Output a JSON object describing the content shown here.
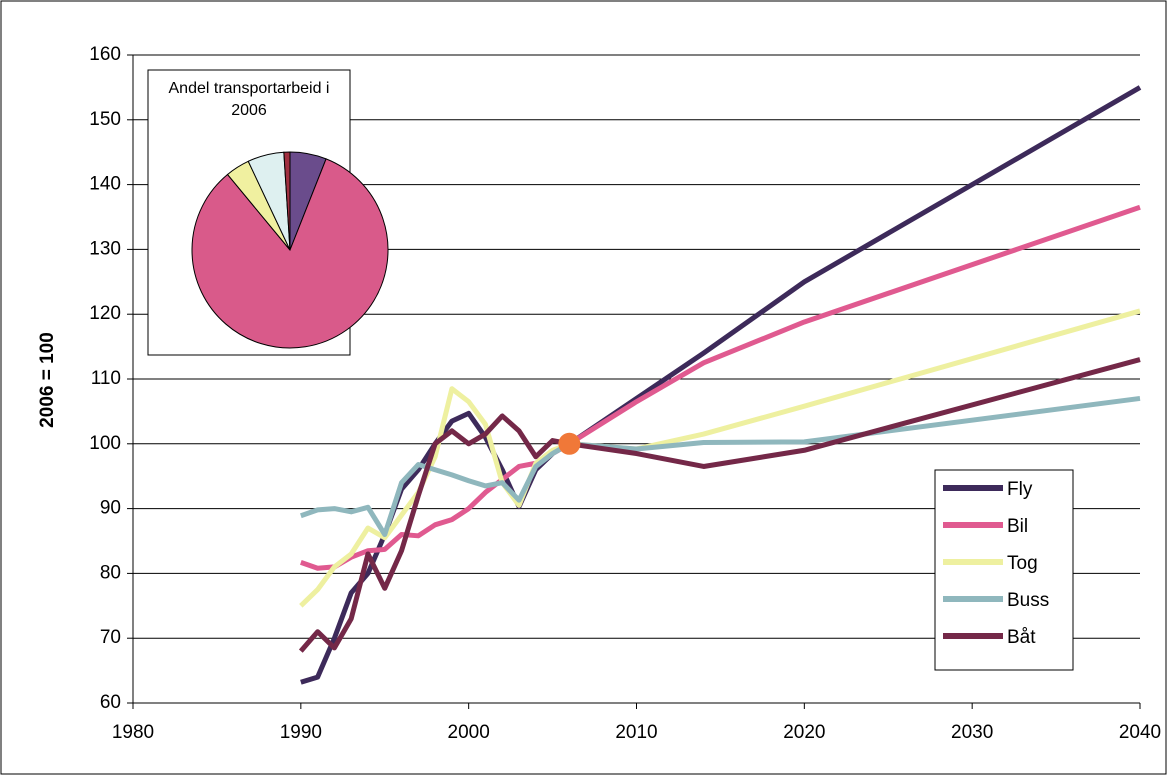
{
  "chart_data": [
    {
      "type": "line",
      "ylabel": "2006 = 100",
      "x": [
        1990,
        1991,
        1992,
        1993,
        1994,
        1995,
        1996,
        1997,
        1998,
        1999,
        2000,
        2001,
        2002,
        2003,
        2004,
        2005,
        2006,
        2010,
        2014,
        2020,
        2040
      ],
      "series": [
        {
          "name": "Fly",
          "color": "#3d2a5a",
          "values": [
            63.2,
            64,
            70,
            77,
            80,
            86,
            93,
            96,
            100,
            103.5,
            104.7,
            101,
            96,
            90.3,
            96,
            98.5,
            100,
            107,
            114,
            125,
            155
          ]
        },
        {
          "name": "Bil",
          "color": "#e05a90",
          "values": [
            81.7,
            80.8,
            81,
            82.5,
            83.5,
            83.7,
            86,
            85.8,
            87.5,
            88.3,
            90,
            92.5,
            94.5,
            96.5,
            97,
            98.5,
            100,
            106.5,
            112.5,
            118.8,
            136.5
          ]
        },
        {
          "name": "Tog",
          "color": "#eef0a0",
          "values": [
            75,
            77.5,
            81,
            83,
            87,
            85.5,
            89,
            92.5,
            98,
            108.5,
            106.5,
            103,
            94,
            90.5,
            97,
            99,
            100,
            99.2,
            101.5,
            105.8,
            120.5
          ]
        },
        {
          "name": "Buss",
          "color": "#8fb7bd",
          "values": [
            88.9,
            89.8,
            90,
            89.5,
            90.2,
            86,
            94,
            96.8,
            96,
            95.2,
            94.3,
            93.5,
            94,
            91.3,
            96.5,
            98.5,
            100,
            99.2,
            100.2,
            100.3,
            107
          ]
        },
        {
          "name": "Båt",
          "color": "#742848",
          "values": [
            68,
            71,
            68.5,
            73,
            83,
            77.7,
            83.5,
            92,
            100,
            102,
            100,
            101.5,
            104.3,
            102,
            98,
            100.5,
            100,
            98.5,
            96.5,
            99,
            113
          ]
        }
      ],
      "highlight": {
        "x": 2006,
        "y": 100,
        "color": "#f07838"
      },
      "xlim": [
        1980,
        2040
      ],
      "xticks": [
        1980,
        1990,
        2000,
        2010,
        2020,
        2030,
        2040
      ],
      "ylim": [
        60,
        160
      ],
      "yticks": [
        60,
        70,
        80,
        90,
        100,
        110,
        120,
        130,
        140,
        150,
        160
      ],
      "grid": true,
      "legend": "lower-right"
    },
    {
      "type": "pie",
      "title": "Andel transportarbeid i 2006",
      "values": [
        6,
        83,
        4,
        6,
        1
      ],
      "colors": [
        "#6a4c8c",
        "#d95a8a",
        "#f0f0a0",
        "#def0f0",
        "#a03040"
      ]
    }
  ]
}
